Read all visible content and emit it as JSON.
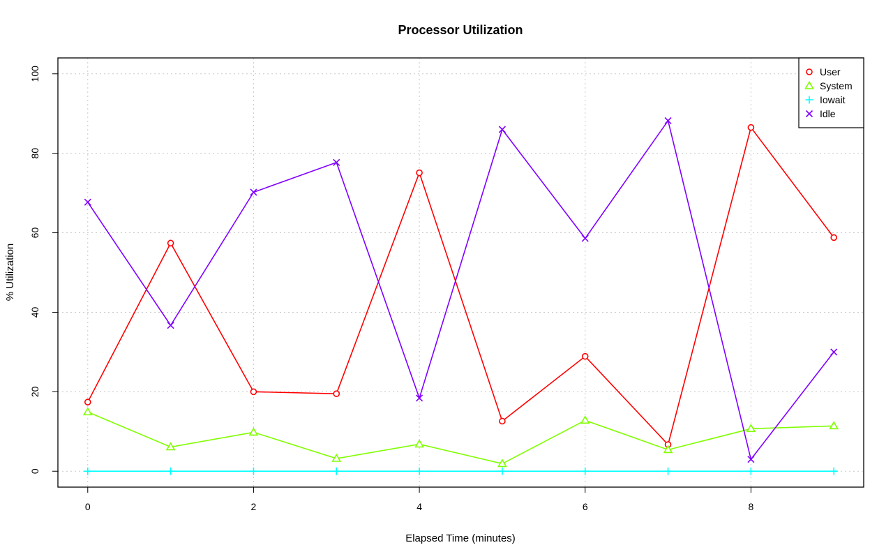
{
  "chart_data": {
    "type": "line",
    "title": "Processor Utilization",
    "xlabel": "Elapsed Time (minutes)",
    "ylabel": "% Utilization",
    "x": [
      0,
      1,
      2,
      3,
      4,
      5,
      6,
      7,
      8,
      9
    ],
    "xlim": [
      -0.36,
      9.36
    ],
    "ylim": [
      -4,
      104
    ],
    "xticks": [
      0,
      2,
      4,
      6,
      8
    ],
    "yticks": [
      0,
      20,
      40,
      60,
      80,
      100
    ],
    "grid": true,
    "legend_position": "top-right",
    "series": [
      {
        "name": "User",
        "color": "#ff0000",
        "marker": "circle",
        "values": [
          17.4,
          57.4,
          20.0,
          19.5,
          75.1,
          12.6,
          28.9,
          6.7,
          86.5,
          58.8
        ]
      },
      {
        "name": "System",
        "color": "#80ff00",
        "marker": "triangle",
        "values": [
          14.9,
          6.1,
          9.8,
          3.2,
          6.8,
          1.9,
          12.8,
          5.4,
          10.7,
          11.4
        ]
      },
      {
        "name": "Iowait",
        "color": "#00ffff",
        "marker": "plus",
        "values": [
          0,
          0,
          0,
          0,
          0,
          0,
          0,
          0,
          0,
          0
        ]
      },
      {
        "name": "Idle",
        "color": "#8000ff",
        "marker": "cross",
        "values": [
          67.7,
          36.7,
          70.2,
          77.7,
          18.4,
          86.0,
          58.6,
          88.2,
          3.0,
          30.0
        ]
      }
    ]
  }
}
